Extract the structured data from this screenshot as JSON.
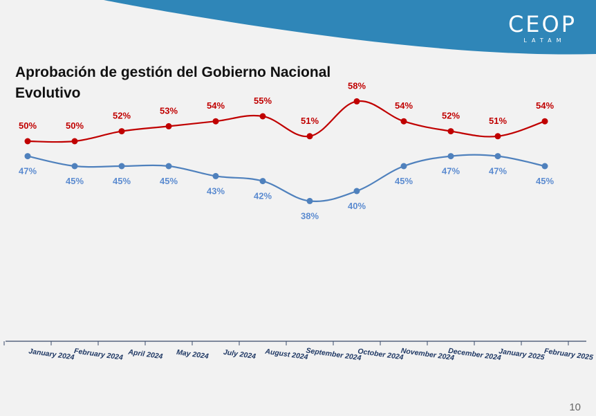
{
  "header": {
    "logo_main": "CEOP",
    "logo_sub": "LATAM"
  },
  "title": {
    "line1": "Aprobación de gestión del Gobierno Nacional",
    "line2": "Evolutivo"
  },
  "page_number": "10",
  "colors": {
    "approve": "#c00000",
    "disapprove": "#4f81bd",
    "approve_label": "#c00000",
    "disapprove_label": "#5b8bd0",
    "header_blue": "#2f86b8",
    "axis_label": "#1f3864"
  },
  "chart_data": {
    "type": "line",
    "categories": [
      "January 2024",
      "February 2024",
      "April 2024",
      "May 2024",
      "July 2024",
      "August 2024",
      "September 2024",
      "October 2024",
      "November 2024",
      "December 2024",
      "January 2025",
      "February 2025"
    ],
    "series": [
      {
        "values": [
          50,
          50,
          52,
          53,
          54,
          55,
          51,
          58,
          54,
          52,
          51,
          54
        ],
        "labels": [
          "50%",
          "50%",
          "52%",
          "53%",
          "54%",
          "55%",
          "51%",
          "58%",
          "54%",
          "52%",
          "51%",
          "54%"
        ]
      },
      {
        "values": [
          47,
          45,
          45,
          45,
          43,
          42,
          38,
          40,
          45,
          47,
          47,
          45
        ],
        "labels": [
          "47%",
          "45%",
          "45%",
          "45%",
          "43%",
          "42%",
          "38%",
          "40%",
          "45%",
          "47%",
          "47%",
          "45%"
        ]
      }
    ],
    "ylim": [
      20,
      70
    ],
    "grid": false,
    "smooth": true
  }
}
